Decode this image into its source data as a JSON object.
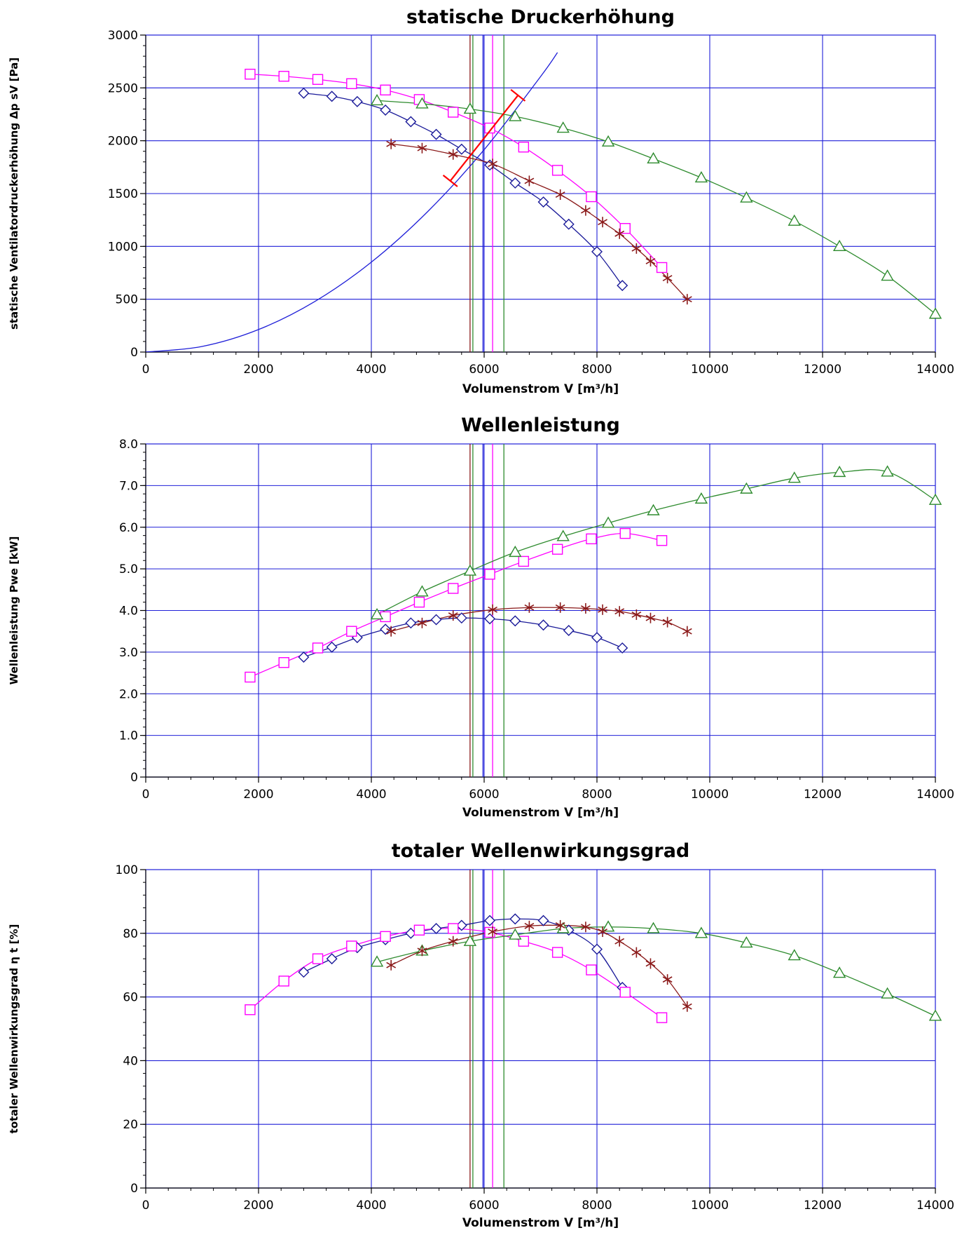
{
  "colors": {
    "grid": "#1f1fd8",
    "series": [
      "#1a1a99",
      "#ff00ff",
      "#2e8b2e",
      "#8b1a1a"
    ],
    "system_curve": "#1f1fd8",
    "operating_point": "#ff0000"
  },
  "chart_data": [
    {
      "type": "line",
      "title": "statische Druckerhöhung",
      "xlabel": "Volumenstrom  V [m³/h]",
      "ylabel": "statische Ventilatordruckerhöhung  Δp sV [Pa]",
      "xlim": [
        0,
        14000
      ],
      "ylim": [
        0,
        3000
      ],
      "xticks": [
        0,
        2000,
        4000,
        6000,
        8000,
        10000,
        12000,
        14000
      ],
      "xtick_labels": [
        "0",
        "2000",
        "4000",
        "6000",
        "8000",
        "10000",
        "12000",
        "14000"
      ],
      "yticks": [
        0,
        500,
        1000,
        1500,
        2000,
        2500,
        3000
      ],
      "ytick_labels": [
        "0",
        "500",
        "1000",
        "1500",
        "2000",
        "2500",
        "3000"
      ],
      "grid": true,
      "vertical_lines": [
        5750,
        5800,
        5980,
        6150,
        6350
      ],
      "series": [
        {
          "marker": "diamond",
          "x": [
            2800,
            3300,
            3750,
            4250,
            4700,
            5150,
            5600,
            6100,
            6550,
            7050,
            7500,
            8000,
            8450
          ],
          "y": [
            2450,
            2420,
            2370,
            2290,
            2180,
            2060,
            1920,
            1770,
            1600,
            1420,
            1210,
            950,
            630
          ]
        },
        {
          "marker": "square",
          "x": [
            1850,
            2450,
            3050,
            3650,
            4250,
            4850,
            5450,
            6100,
            6700,
            7300,
            7900,
            8500,
            9150
          ],
          "y": [
            2630,
            2610,
            2580,
            2540,
            2480,
            2390,
            2270,
            2120,
            1940,
            1720,
            1470,
            1170,
            800
          ]
        },
        {
          "marker": "triangle",
          "x": [
            4100,
            4900,
            5750,
            6550,
            7400,
            8200,
            9000,
            9850,
            10650,
            11500,
            12300,
            13150,
            14000
          ],
          "y": [
            2380,
            2350,
            2300,
            2230,
            2120,
            1990,
            1830,
            1650,
            1460,
            1240,
            1000,
            720,
            360
          ]
        },
        {
          "marker": "star",
          "x": [
            4350,
            4900,
            5450,
            6150,
            6800,
            7350,
            7800,
            8100,
            8400,
            8700,
            8950,
            9250,
            9600
          ],
          "y": [
            1970,
            1930,
            1870,
            1780,
            1620,
            1490,
            1340,
            1230,
            1120,
            980,
            860,
            700,
            500
          ]
        }
      ],
      "system_curve": {
        "x": [
          0,
          1000,
          2000,
          3000,
          4000,
          5000,
          6000,
          7000,
          7300
        ],
        "y": [
          0,
          53,
          213,
          479,
          851,
          1330,
          1915,
          2607,
          2835
        ]
      },
      "operating_point": {
        "x": [
          5400,
          6600
        ],
        "y": [
          1620,
          2430
        ]
      }
    },
    {
      "type": "line",
      "title": "Wellenleistung",
      "xlabel": "Volumenstrom  V [m³/h]",
      "ylabel": "Wellenleistung  Pwe [kW]",
      "xlim": [
        0,
        14000
      ],
      "ylim": [
        0,
        8
      ],
      "xticks": [
        0,
        2000,
        4000,
        6000,
        8000,
        10000,
        12000,
        14000
      ],
      "xtick_labels": [
        "0",
        "2000",
        "4000",
        "6000",
        "8000",
        "10000",
        "12000",
        "14000"
      ],
      "yticks": [
        0,
        1,
        2,
        3,
        4,
        5,
        6,
        7,
        8
      ],
      "ytick_labels": [
        "0",
        "1.0",
        "2.0",
        "3.0",
        "4.0",
        "5.0",
        "6.0",
        "7.0",
        "8.0"
      ],
      "grid": true,
      "vertical_lines": [
        5750,
        5800,
        5980,
        6150,
        6350
      ],
      "series": [
        {
          "marker": "diamond",
          "x": [
            2800,
            3300,
            3750,
            4250,
            4700,
            5150,
            5600,
            6100,
            6550,
            7050,
            7500,
            8000,
            8450
          ],
          "y": [
            2.88,
            3.12,
            3.35,
            3.55,
            3.7,
            3.78,
            3.82,
            3.8,
            3.75,
            3.65,
            3.52,
            3.35,
            3.1
          ]
        },
        {
          "marker": "square",
          "x": [
            1850,
            2450,
            3050,
            3650,
            4250,
            4850,
            5450,
            6100,
            6700,
            7300,
            7900,
            8500,
            9150
          ],
          "y": [
            2.4,
            2.75,
            3.1,
            3.5,
            3.85,
            4.2,
            4.53,
            4.87,
            5.18,
            5.47,
            5.72,
            5.85,
            5.68
          ]
        },
        {
          "marker": "triangle",
          "x": [
            4100,
            4900,
            5750,
            6550,
            7400,
            8200,
            9000,
            9850,
            10650,
            11500,
            12300,
            13150,
            14000
          ],
          "y": [
            3.9,
            4.45,
            4.95,
            5.4,
            5.78,
            6.1,
            6.4,
            6.68,
            6.92,
            7.18,
            7.32,
            7.33,
            6.65
          ]
        },
        {
          "marker": "star",
          "x": [
            4350,
            4900,
            5450,
            6150,
            6800,
            7350,
            7800,
            8100,
            8400,
            8700,
            8950,
            9250,
            9600
          ],
          "y": [
            3.5,
            3.7,
            3.88,
            4.02,
            4.07,
            4.07,
            4.05,
            4.02,
            3.98,
            3.9,
            3.82,
            3.72,
            3.5
          ]
        }
      ]
    },
    {
      "type": "line",
      "title": "totaler Wellenwirkungsgrad",
      "xlabel": "Volumenstrom  V [m³/h]",
      "ylabel": "totaler Wellenwirkungsgrad  η t [%]",
      "xlim": [
        0,
        14000
      ],
      "ylim": [
        0,
        100
      ],
      "xticks": [
        0,
        2000,
        4000,
        6000,
        8000,
        10000,
        12000,
        14000
      ],
      "xtick_labels": [
        "0",
        "2000",
        "4000",
        "6000",
        "8000",
        "10000",
        "12000",
        "14000"
      ],
      "yticks": [
        0,
        20,
        40,
        60,
        80,
        100
      ],
      "ytick_labels": [
        "0",
        "20",
        "40",
        "60",
        "80",
        "100"
      ],
      "grid": true,
      "vertical_lines": [
        5750,
        5800,
        5980,
        6150,
        6350
      ],
      "series": [
        {
          "marker": "diamond",
          "x": [
            2800,
            3300,
            3750,
            4250,
            4700,
            5150,
            5600,
            6100,
            6550,
            7050,
            7500,
            8000,
            8450
          ],
          "y": [
            67.8,
            72,
            75.5,
            78,
            80,
            81.5,
            82.5,
            84,
            84.5,
            84,
            81,
            75,
            63
          ]
        },
        {
          "marker": "square",
          "x": [
            1850,
            2450,
            3050,
            3650,
            4250,
            4850,
            5450,
            6100,
            6700,
            7300,
            7900,
            8500,
            9150
          ],
          "y": [
            56,
            65,
            72,
            76,
            79,
            81,
            81.5,
            80.3,
            77.5,
            74,
            68.5,
            61.5,
            53.5
          ]
        },
        {
          "marker": "triangle",
          "x": [
            4100,
            4900,
            5750,
            6550,
            7400,
            8200,
            9000,
            9850,
            10650,
            11500,
            12300,
            13150,
            14000
          ],
          "y": [
            71,
            74.5,
            77.5,
            79.5,
            81.5,
            82,
            81.5,
            80,
            77,
            73,
            67.5,
            61,
            54
          ]
        },
        {
          "marker": "star",
          "x": [
            4350,
            4900,
            5450,
            6150,
            6800,
            7350,
            7800,
            8100,
            8400,
            8700,
            8950,
            9250,
            9600
          ],
          "y": [
            70,
            74.5,
            77.5,
            80.5,
            82.3,
            82.5,
            82,
            80.5,
            77.5,
            74,
            70.5,
            65.5,
            57
          ]
        }
      ]
    }
  ]
}
